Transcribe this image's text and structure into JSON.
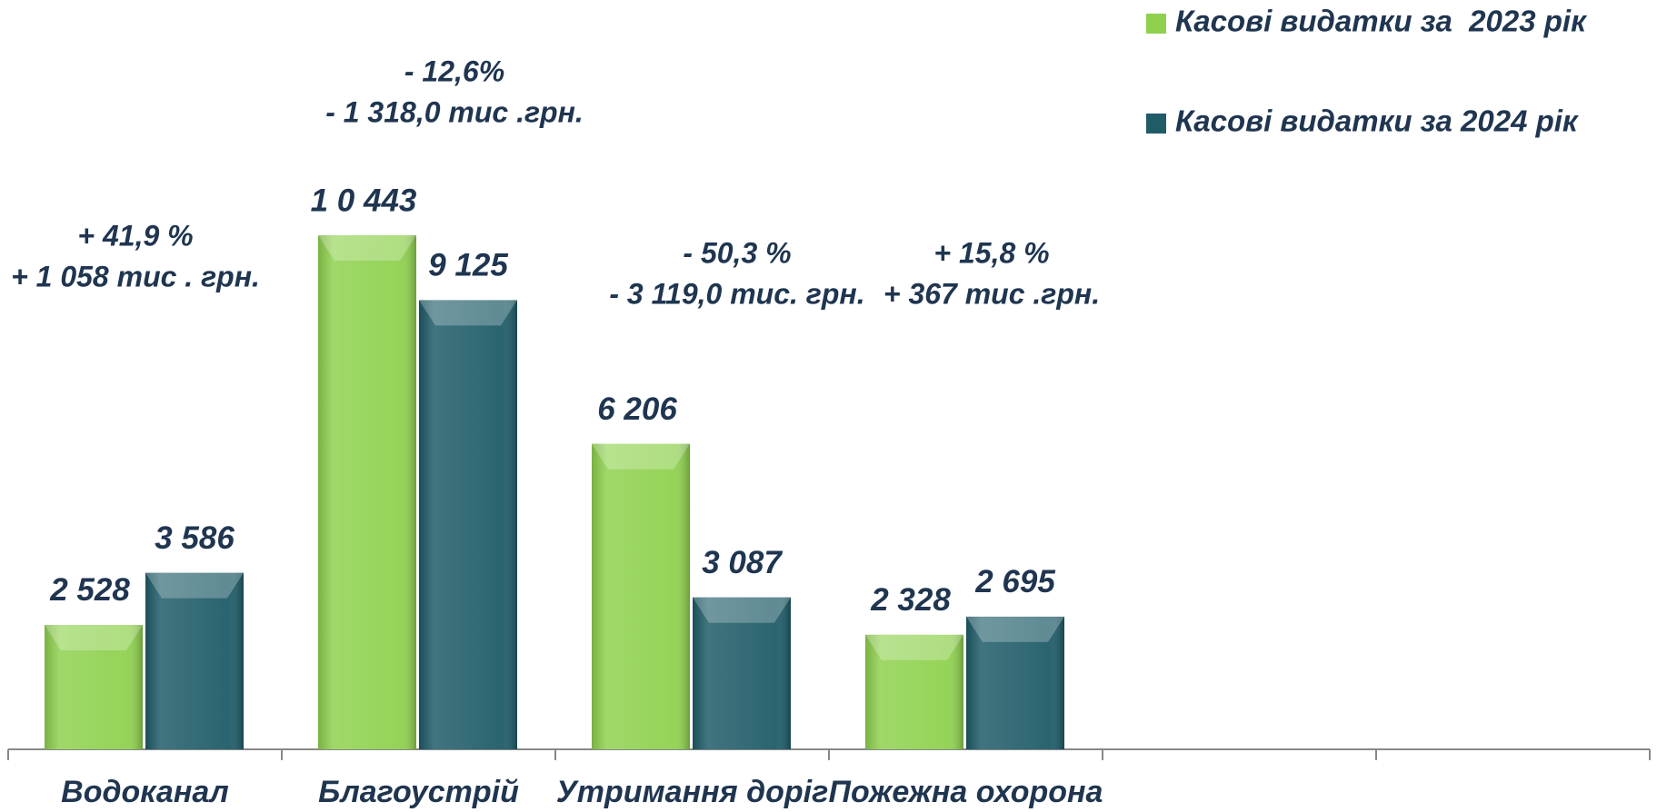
{
  "chart_data": {
    "type": "bar",
    "categories": [
      "Водоканал",
      "Благоустрій",
      "Утримання доріг",
      "Пожежна охорона",
      null,
      null
    ],
    "series": [
      {
        "name": "Касові видатки за  2023 рік",
        "color": "#8fd14f",
        "values": [
          2528,
          10443,
          6206,
          2328,
          null,
          null
        ],
        "value_labels": [
          "2 528",
          "1 0 443",
          "6 206",
          "2 328",
          null,
          null
        ]
      },
      {
        "name": "Касові видатки за 2024 рік",
        "color": "#1f5c68",
        "values": [
          3586,
          9125,
          3087,
          2695,
          null,
          null
        ],
        "value_labels": [
          "3 586",
          "9 125",
          "3 087",
          "2 695",
          null,
          null
        ]
      }
    ],
    "annotations": [
      [
        "+ 41,9 %",
        "+ 1 058 тис . грн."
      ],
      [
        "- 12,6%",
        "- 1 318,0 тис .грн."
      ],
      [
        "- 50,3 %",
        "- 3 119,0 тис. грн."
      ],
      [
        "+ 15,8 %",
        "+ 367 тис .грн."
      ],
      null,
      null
    ],
    "legend": "top-right"
  }
}
